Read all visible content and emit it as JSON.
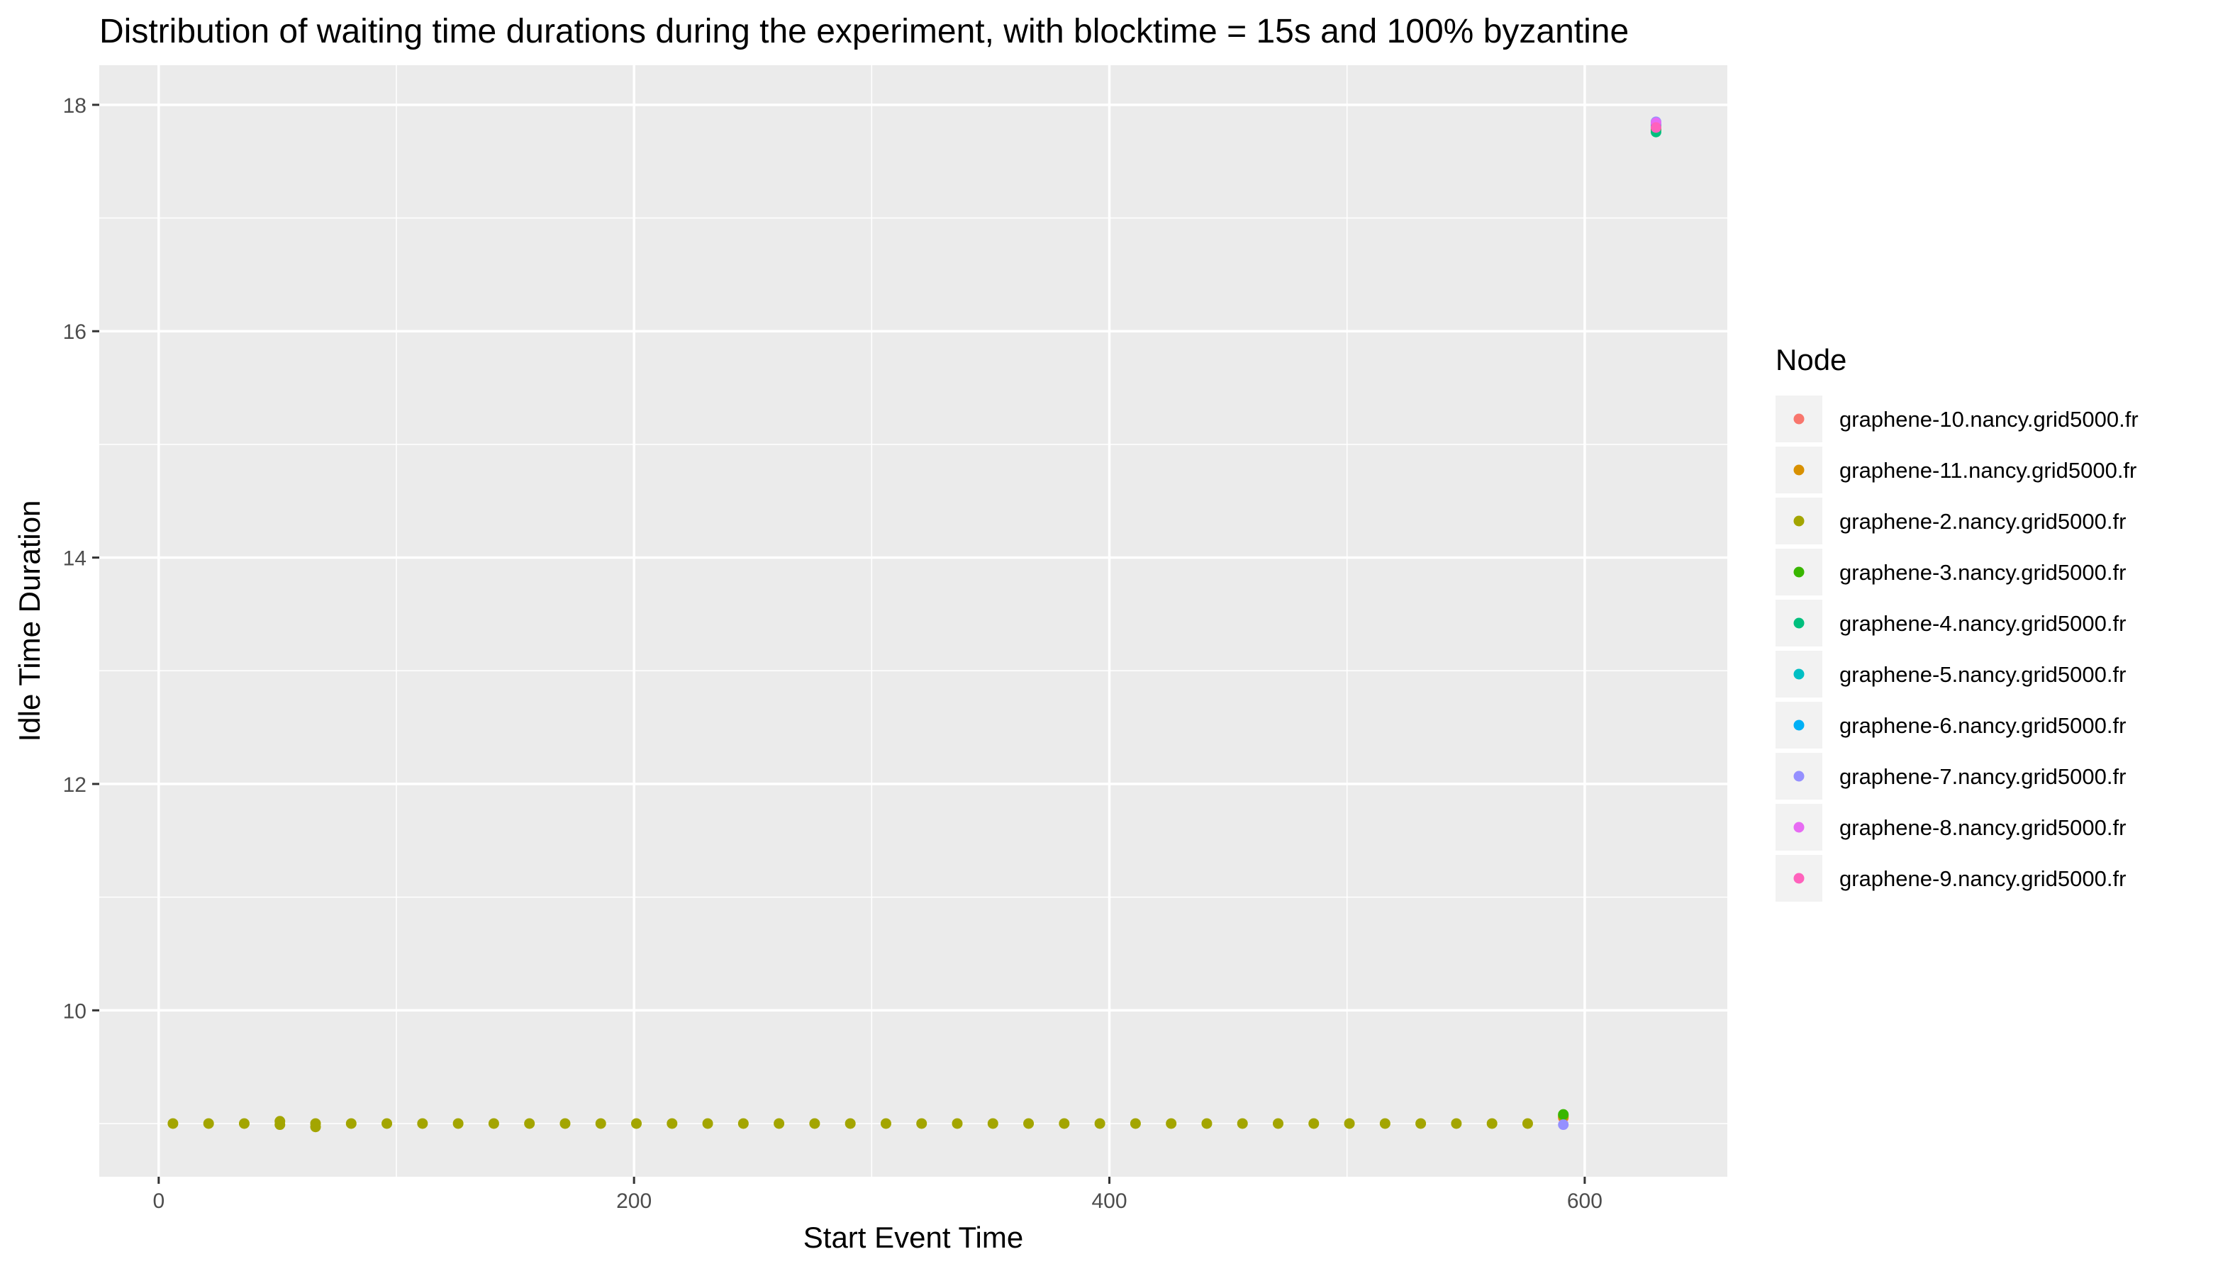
{
  "chart_data": {
    "type": "scatter",
    "title": "Distribution of waiting time durations during the experiment, with blocktime = 15s and 100% byzantine",
    "xlabel": "Start Event Time",
    "ylabel": "Idle Time Duration",
    "xlim": [
      -25,
      660
    ],
    "ylim": [
      8.53,
      18.35
    ],
    "x_ticks": [
      0,
      200,
      400,
      600
    ],
    "x_tick_labels": [
      "0",
      "200",
      "400",
      "600"
    ],
    "y_ticks": [
      10,
      12,
      14,
      16,
      18
    ],
    "y_tick_labels": [
      "10",
      "12",
      "14",
      "16",
      "18"
    ],
    "grid": true,
    "legend_title": "Node",
    "legend_position": "right",
    "series": [
      {
        "name": "graphene-10.nancy.grid5000.fr",
        "color": "#F8766D",
        "points": [
          [
            630,
            17.82
          ],
          [
            591,
            9.05
          ]
        ]
      },
      {
        "name": "graphene-11.nancy.grid5000.fr",
        "color": "#D89000",
        "points": [
          [
            630,
            17.8
          ],
          [
            591,
            9.06
          ]
        ]
      },
      {
        "name": "graphene-2.nancy.grid5000.fr",
        "color": "#A3A500",
        "points": [
          [
            6,
            9.0
          ],
          [
            21,
            9.0
          ],
          [
            36,
            9.0
          ],
          [
            51,
            9.02
          ],
          [
            51,
            8.99
          ],
          [
            66,
            9.0
          ],
          [
            66,
            8.97
          ],
          [
            81,
            9.0
          ],
          [
            96,
            9.0
          ],
          [
            111,
            9.0
          ],
          [
            126,
            9.0
          ],
          [
            141,
            9.0
          ],
          [
            156,
            9.0
          ],
          [
            171,
            9.0
          ],
          [
            186,
            9.0
          ],
          [
            201,
            9.0
          ],
          [
            216,
            9.0
          ],
          [
            231,
            9.0
          ],
          [
            246,
            9.0
          ],
          [
            261,
            9.0
          ],
          [
            276,
            9.0
          ],
          [
            291,
            9.0
          ],
          [
            306,
            9.0
          ],
          [
            321,
            9.0
          ],
          [
            336,
            9.0
          ],
          [
            351,
            9.0
          ],
          [
            366,
            9.0
          ],
          [
            381,
            9.0
          ],
          [
            396,
            9.0
          ],
          [
            411,
            9.0
          ],
          [
            426,
            9.0
          ],
          [
            441,
            9.0
          ],
          [
            456,
            9.0
          ],
          [
            471,
            9.0
          ],
          [
            486,
            9.0
          ],
          [
            501,
            9.0
          ],
          [
            516,
            9.0
          ],
          [
            531,
            9.0
          ],
          [
            546,
            9.0
          ],
          [
            561,
            9.0
          ],
          [
            576,
            9.0
          ],
          [
            591,
            9.07
          ],
          [
            630,
            17.79
          ]
        ]
      },
      {
        "name": "graphene-3.nancy.grid5000.fr",
        "color": "#39B600",
        "points": [
          [
            630,
            17.78
          ],
          [
            591,
            9.08
          ]
        ]
      },
      {
        "name": "graphene-4.nancy.grid5000.fr",
        "color": "#00BF7D",
        "points": [
          [
            630,
            17.76
          ]
        ]
      },
      {
        "name": "graphene-5.nancy.grid5000.fr",
        "color": "#00BFC4",
        "points": [
          [
            630,
            17.81
          ]
        ]
      },
      {
        "name": "graphene-6.nancy.grid5000.fr",
        "color": "#00B0F6",
        "points": [
          [
            630,
            17.83
          ]
        ]
      },
      {
        "name": "graphene-7.nancy.grid5000.fr",
        "color": "#9590FF",
        "points": [
          [
            630,
            17.85
          ],
          [
            591,
            8.99
          ]
        ]
      },
      {
        "name": "graphene-8.nancy.grid5000.fr",
        "color": "#E76BF3",
        "points": [
          [
            630,
            17.84
          ]
        ]
      },
      {
        "name": "graphene-9.nancy.grid5000.fr",
        "color": "#FF62BC",
        "points": [
          [
            630,
            17.8
          ]
        ]
      }
    ]
  }
}
